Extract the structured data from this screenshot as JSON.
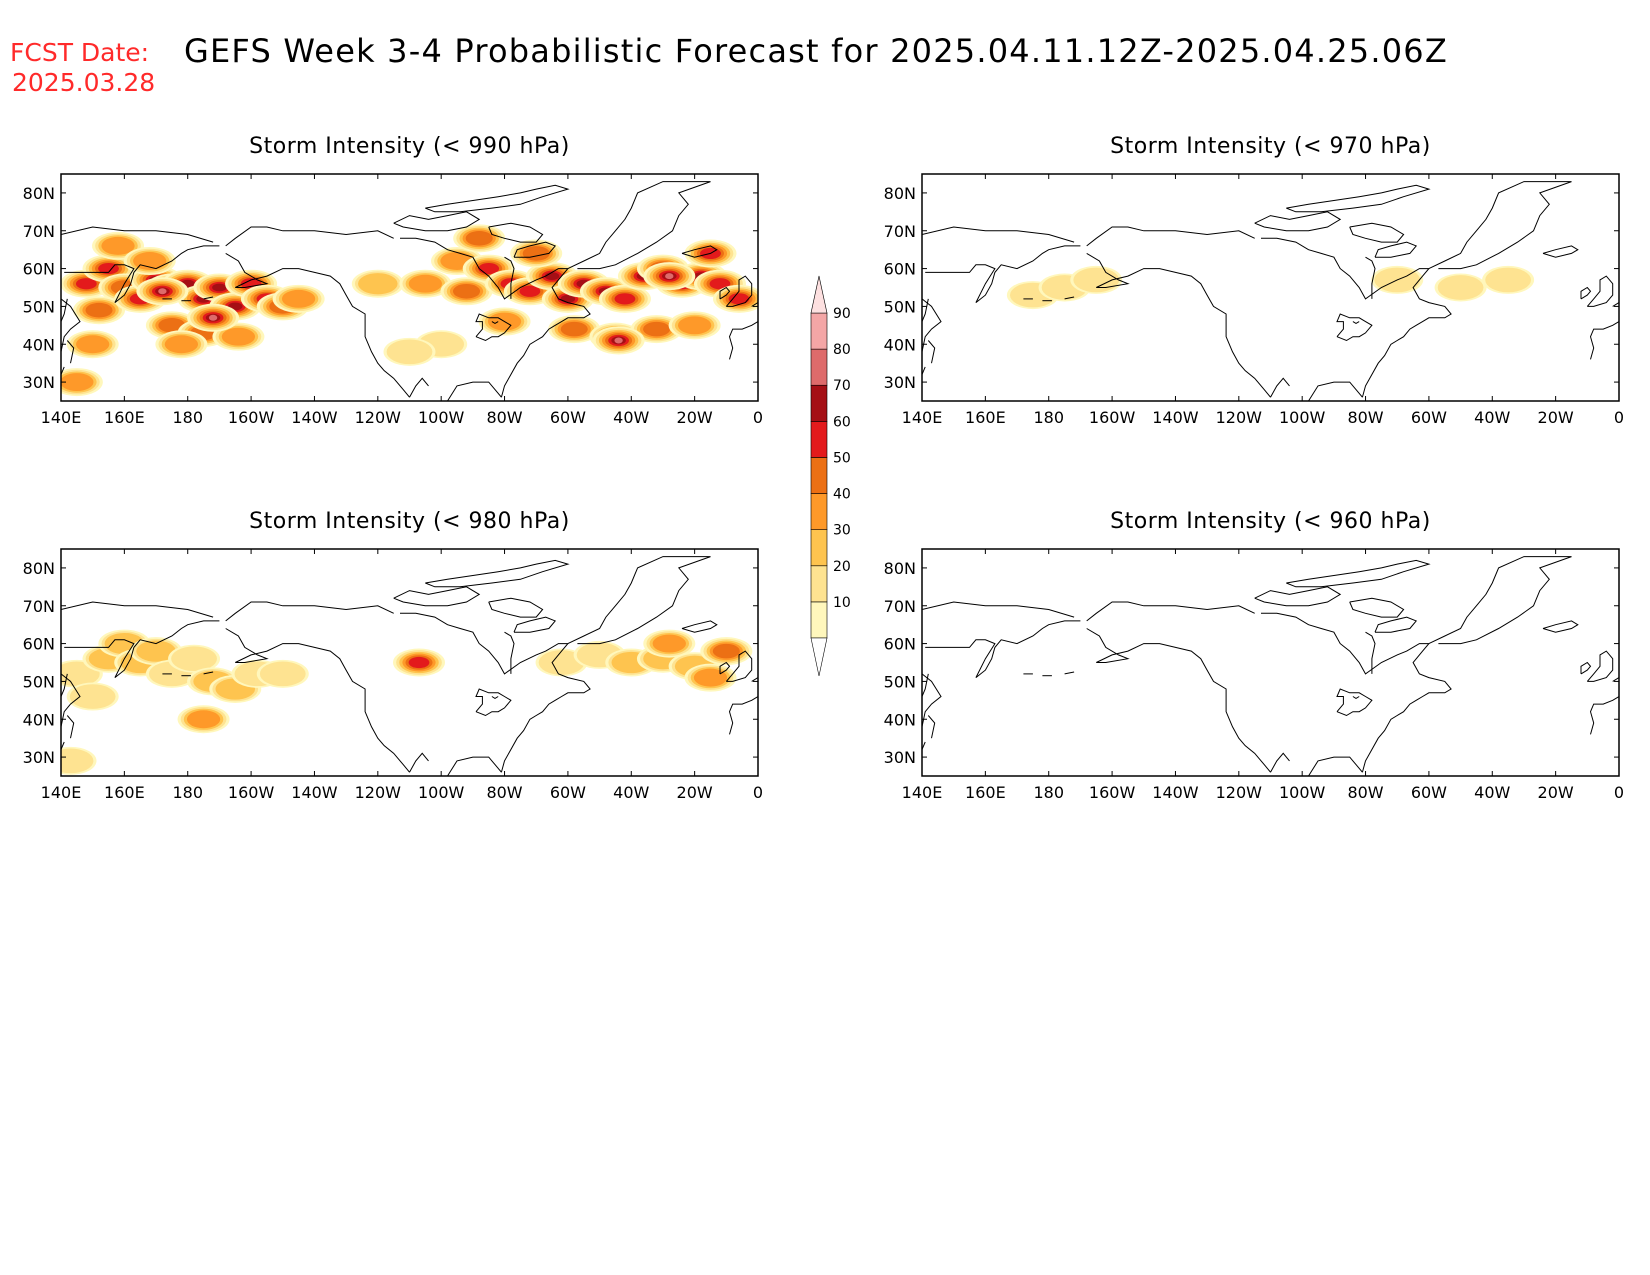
{
  "header": {
    "fcst_label": "FCST Date:",
    "fcst_date": "2025.03.28",
    "title": "GEFS Week 3-4 Probabilistic Forecast for 2025.04.11.12Z-2025.04.25.06Z"
  },
  "lon_ticks": [
    "140E",
    "160E",
    "180",
    "160W",
    "140W",
    "120W",
    "100W",
    "80W",
    "60W",
    "40W",
    "20W",
    "0"
  ],
  "lat_ticks": [
    "80N",
    "70N",
    "60N",
    "50N",
    "40N",
    "30N"
  ],
  "lon_range": [
    140,
    360
  ],
  "lat_range": [
    25,
    85
  ],
  "panels": [
    {
      "title": "Storm Intensity (< 990 hPa)",
      "blobs": [
        {
          "lon": 148,
          "lat": 56,
          "level": 5
        },
        {
          "lon": 152,
          "lat": 49,
          "level": 4
        },
        {
          "lon": 155,
          "lat": 60,
          "level": 5
        },
        {
          "lon": 160,
          "lat": 55,
          "level": 4
        },
        {
          "lon": 165,
          "lat": 52,
          "level": 5
        },
        {
          "lon": 170,
          "lat": 57,
          "level": 6
        },
        {
          "lon": 175,
          "lat": 55,
          "level": 6
        },
        {
          "lon": 180,
          "lat": 56,
          "level": 6
        },
        {
          "lon": 185,
          "lat": 52,
          "level": 6
        },
        {
          "lon": 190,
          "lat": 55,
          "level": 6
        },
        {
          "lon": 195,
          "lat": 50,
          "level": 6
        },
        {
          "lon": 200,
          "lat": 56,
          "level": 5
        },
        {
          "lon": 205,
          "lat": 52,
          "level": 5
        },
        {
          "lon": 210,
          "lat": 50,
          "level": 4
        },
        {
          "lon": 215,
          "lat": 52,
          "level": 3
        },
        {
          "lon": 175,
          "lat": 45,
          "level": 4
        },
        {
          "lon": 185,
          "lat": 43,
          "level": 4
        },
        {
          "lon": 158,
          "lat": 66,
          "level": 3
        },
        {
          "lon": 150,
          "lat": 40,
          "level": 3
        },
        {
          "lon": 145,
          "lat": 30,
          "level": 3
        },
        {
          "lon": 178,
          "lat": 40,
          "level": 3
        },
        {
          "lon": 196,
          "lat": 42,
          "level": 3
        },
        {
          "lon": 168,
          "lat": 62,
          "level": 3
        },
        {
          "lon": 188,
          "lat": 47,
          "level": 7
        },
        {
          "lon": 172,
          "lat": 54,
          "level": 7
        },
        {
          "lon": 240,
          "lat": 56,
          "level": 2
        },
        {
          "lon": 255,
          "lat": 56,
          "level": 3
        },
        {
          "lon": 260,
          "lat": 40,
          "level": 1
        },
        {
          "lon": 250,
          "lat": 38,
          "level": 1
        },
        {
          "lon": 265,
          "lat": 62,
          "level": 3
        },
        {
          "lon": 268,
          "lat": 54,
          "level": 4
        },
        {
          "lon": 275,
          "lat": 60,
          "level": 5
        },
        {
          "lon": 282,
          "lat": 56,
          "level": 5
        },
        {
          "lon": 288,
          "lat": 54,
          "level": 5
        },
        {
          "lon": 295,
          "lat": 58,
          "level": 6
        },
        {
          "lon": 300,
          "lat": 52,
          "level": 6
        },
        {
          "lon": 305,
          "lat": 56,
          "level": 6
        },
        {
          "lon": 312,
          "lat": 54,
          "level": 6
        },
        {
          "lon": 318,
          "lat": 52,
          "level": 5
        },
        {
          "lon": 324,
          "lat": 58,
          "level": 6
        },
        {
          "lon": 330,
          "lat": 60,
          "level": 6
        },
        {
          "lon": 336,
          "lat": 56,
          "level": 6
        },
        {
          "lon": 342,
          "lat": 58,
          "level": 6
        },
        {
          "lon": 348,
          "lat": 56,
          "level": 5
        },
        {
          "lon": 354,
          "lat": 52,
          "level": 5
        },
        {
          "lon": 302,
          "lat": 44,
          "level": 4
        },
        {
          "lon": 315,
          "lat": 42,
          "level": 4
        },
        {
          "lon": 328,
          "lat": 44,
          "level": 4
        },
        {
          "lon": 340,
          "lat": 45,
          "level": 3
        },
        {
          "lon": 280,
          "lat": 46,
          "level": 3
        },
        {
          "lon": 290,
          "lat": 64,
          "level": 4
        },
        {
          "lon": 316,
          "lat": 41,
          "level": 7
        },
        {
          "lon": 332,
          "lat": 58,
          "level": 7
        },
        {
          "lon": 272,
          "lat": 68,
          "level": 4
        },
        {
          "lon": 345,
          "lat": 64,
          "level": 5
        }
      ]
    },
    {
      "title": "Storm Intensity (< 970 hPa)",
      "blobs": [
        {
          "lon": 175,
          "lat": 53,
          "level": 1
        },
        {
          "lon": 185,
          "lat": 55,
          "level": 1
        },
        {
          "lon": 195,
          "lat": 57,
          "level": 1
        },
        {
          "lon": 290,
          "lat": 57,
          "level": 1
        },
        {
          "lon": 310,
          "lat": 55,
          "level": 1
        },
        {
          "lon": 325,
          "lat": 57,
          "level": 1
        }
      ]
    },
    {
      "title": "Storm Intensity (< 980 hPa)",
      "blobs": [
        {
          "lon": 145,
          "lat": 52,
          "level": 1
        },
        {
          "lon": 150,
          "lat": 46,
          "level": 1
        },
        {
          "lon": 155,
          "lat": 56,
          "level": 2
        },
        {
          "lon": 160,
          "lat": 60,
          "level": 2
        },
        {
          "lon": 165,
          "lat": 55,
          "level": 2
        },
        {
          "lon": 170,
          "lat": 58,
          "level": 2
        },
        {
          "lon": 175,
          "lat": 52,
          "level": 1
        },
        {
          "lon": 182,
          "lat": 56,
          "level": 1
        },
        {
          "lon": 188,
          "lat": 50,
          "level": 2
        },
        {
          "lon": 195,
          "lat": 48,
          "level": 2
        },
        {
          "lon": 202,
          "lat": 52,
          "level": 1
        },
        {
          "lon": 210,
          "lat": 52,
          "level": 1
        },
        {
          "lon": 185,
          "lat": 40,
          "level": 3
        },
        {
          "lon": 143,
          "lat": 29,
          "level": 1
        },
        {
          "lon": 253,
          "lat": 55,
          "level": 5
        },
        {
          "lon": 298,
          "lat": 55,
          "level": 1
        },
        {
          "lon": 310,
          "lat": 57,
          "level": 1
        },
        {
          "lon": 320,
          "lat": 55,
          "level": 2
        },
        {
          "lon": 330,
          "lat": 56,
          "level": 2
        },
        {
          "lon": 340,
          "lat": 54,
          "level": 2
        },
        {
          "lon": 350,
          "lat": 58,
          "level": 4
        },
        {
          "lon": 332,
          "lat": 60,
          "level": 3
        },
        {
          "lon": 345,
          "lat": 51,
          "level": 3
        }
      ]
    },
    {
      "title": "Storm Intensity (< 960 hPa)",
      "blobs": []
    }
  ],
  "colorbar": {
    "labels": [
      "10",
      "20",
      "30",
      "40",
      "50",
      "60",
      "70",
      "80",
      "90"
    ],
    "colors": [
      "#fff7bc",
      "#fee391",
      "#fec44f",
      "#fe9929",
      "#ec7014",
      "#e31a1c",
      "#a50f15",
      "#de6b6b",
      "#f4a6a6",
      "#fde0e0"
    ]
  }
}
